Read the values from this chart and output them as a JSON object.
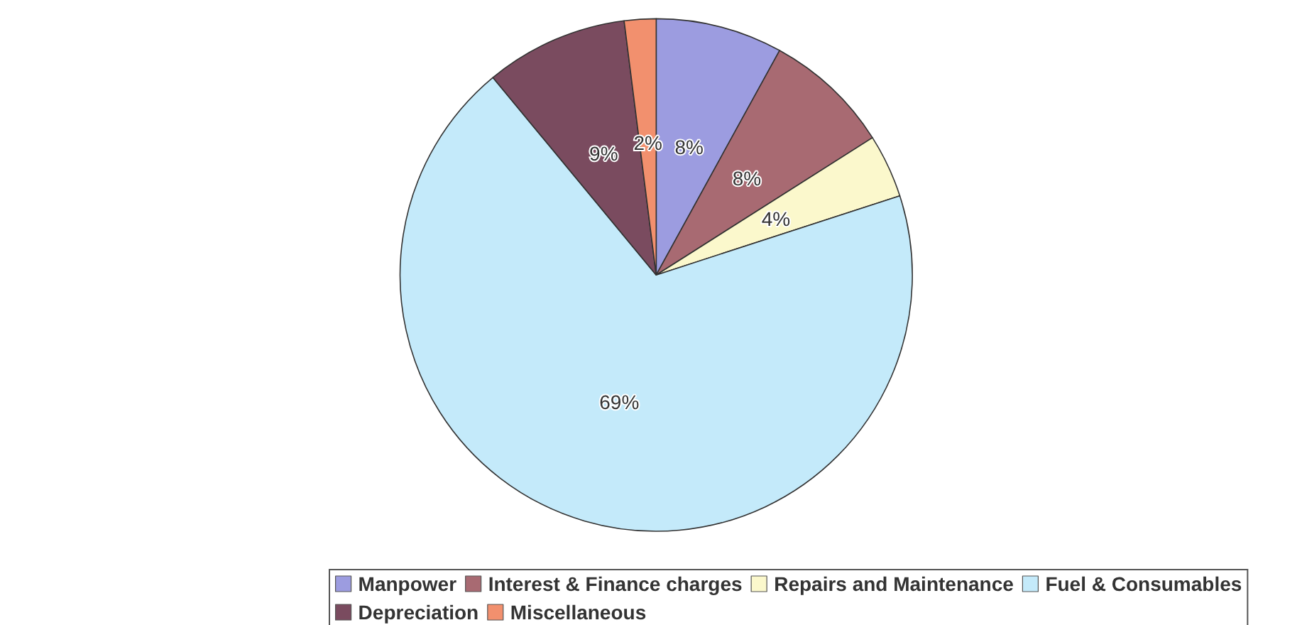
{
  "chart_data": {
    "type": "pie",
    "categories": [
      "Manpower",
      "Interest & Finance charges",
      "Repairs and Maintenance",
      "Fuel & Consumables",
      "Depreciation",
      "Miscellaneous"
    ],
    "values": [
      8,
      8,
      4,
      69,
      9,
      2
    ],
    "colors": [
      "#9c9ce0",
      "#a86a72",
      "#fbf8cc",
      "#c4eafa",
      "#7a4b5f",
      "#f2906e"
    ],
    "value_labels": [
      "8%",
      "8%",
      "4%",
      "69%",
      "9%",
      "2%"
    ],
    "legend": "bottom"
  }
}
